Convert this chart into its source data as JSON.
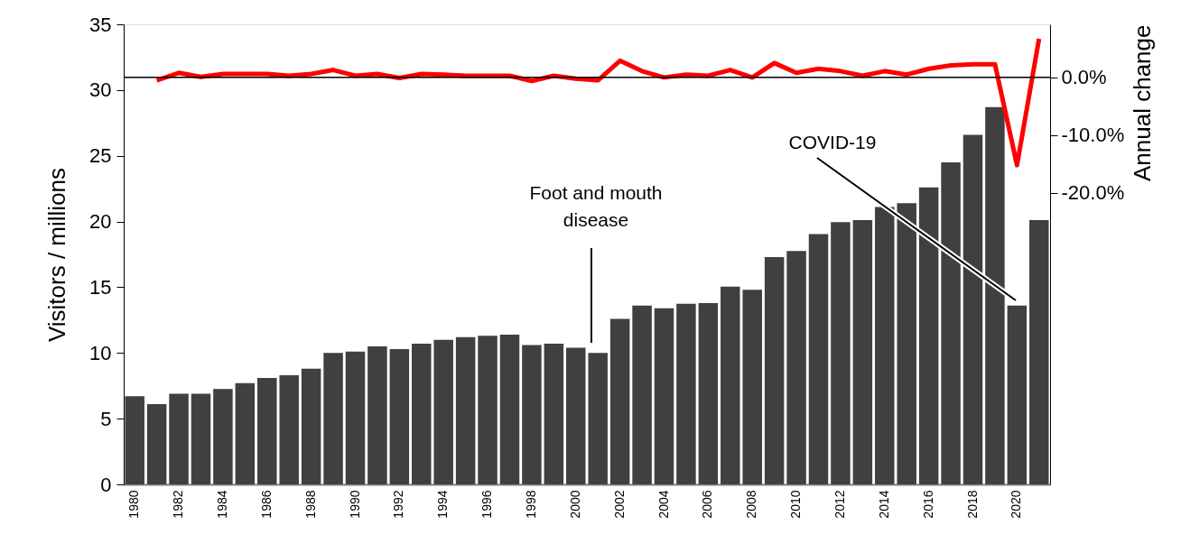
{
  "chart_data": {
    "type": "bar",
    "ylabel": "Visitors / millions",
    "y2label": "Annual change",
    "categories": [
      "1980",
      null,
      "1982",
      null,
      "1984",
      null,
      "1986",
      null,
      "1988",
      null,
      "1990",
      null,
      "1992",
      null,
      "1994",
      null,
      "1996",
      null,
      "1998",
      null,
      "2000",
      null,
      "2002",
      null,
      "2004",
      null,
      "2006",
      null,
      "2008",
      null,
      "2010",
      null,
      "2012",
      null,
      "2014",
      null,
      "2016",
      null,
      "2018",
      null,
      "2020",
      null
    ],
    "series": [
      {
        "color": "#404040",
        "values": [
          6.7,
          6.1,
          6.9,
          6.9,
          7.25,
          7.7,
          8.1,
          8.3,
          8.8,
          10.0,
          10.1,
          10.5,
          10.3,
          10.7,
          11.0,
          11.2,
          11.3,
          11.4,
          10.6,
          10.7,
          10.4,
          10.0,
          12.6,
          13.6,
          13.4,
          13.75,
          13.8,
          15.05,
          14.8,
          17.3,
          17.75,
          19.05,
          19.95,
          20.1,
          21.1,
          21.4,
          22.6,
          24.5,
          26.6,
          28.7,
          13.6,
          20.1
        ]
      },
      {
        "type": "line",
        "axis": "y2",
        "color": "#ff0000",
        "values": [
          null,
          -0.5,
          0.8,
          0.1,
          0.6,
          0.6,
          0.6,
          0.3,
          0.6,
          1.3,
          0.3,
          0.6,
          -0.1,
          0.6,
          0.5,
          0.3,
          0.3,
          0.3,
          -0.6,
          0.3,
          -0.2,
          -0.5,
          2.9,
          1.1,
          0.0,
          0.5,
          0.3,
          1.3,
          0.0,
          2.5,
          0.8,
          1.5,
          1.1,
          0.3,
          1.1,
          0.5,
          1.5,
          2.1,
          2.3,
          2.3,
          -15.2,
          6.7
        ]
      }
    ],
    "ylim": [
      0,
      35
    ],
    "yticks": [
      0,
      5,
      10,
      15,
      20,
      25,
      30,
      35
    ],
    "y2lim": [
      -70.5,
      9.2
    ],
    "y2ticks": [
      {
        "value": 0,
        "label": "0.0%"
      },
      {
        "value": -10,
        "label": "-10.0%"
      },
      {
        "value": -20,
        "label": "-20.0%"
      }
    ],
    "ref_lines": [
      {
        "axis": "y2",
        "value": 0,
        "color": "#000000"
      }
    ],
    "annotations": [
      "Foot and mouth disease",
      "COVID-19"
    ],
    "grid": false,
    "line_style": "solid",
    "marker": "none"
  }
}
